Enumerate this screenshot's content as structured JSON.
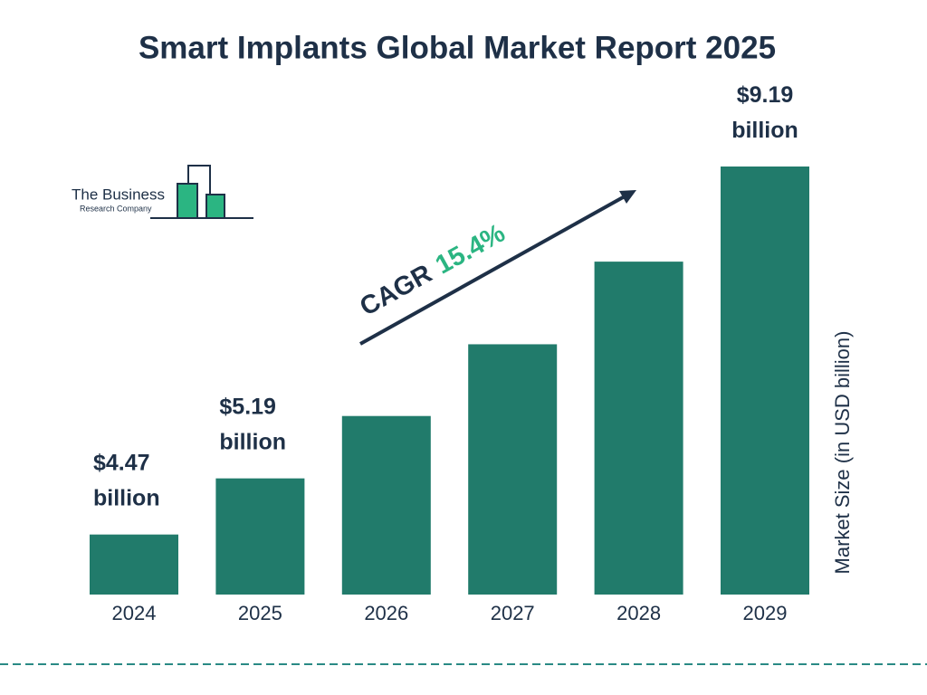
{
  "chart_data": {
    "type": "bar",
    "title": "Smart Implants Global Market Report 2025",
    "categories": [
      "2024",
      "2025",
      "2026",
      "2027",
      "2028",
      "2029"
    ],
    "values": [
      4.47,
      5.19,
      5.99,
      6.91,
      7.97,
      9.19
    ],
    "value_labels": [
      "$4.47 billion",
      "$5.19 billion",
      null,
      null,
      null,
      "$9.19 billion"
    ],
    "color": "#217b6b",
    "ylim": [
      3.7,
      9.19
    ],
    "y_axis_label": "Market Size (in USD billion)",
    "cagr_label": "CAGR",
    "cagr_value": "15.4%"
  },
  "logo": {
    "line1": "The Business",
    "line2": "Research Company"
  }
}
